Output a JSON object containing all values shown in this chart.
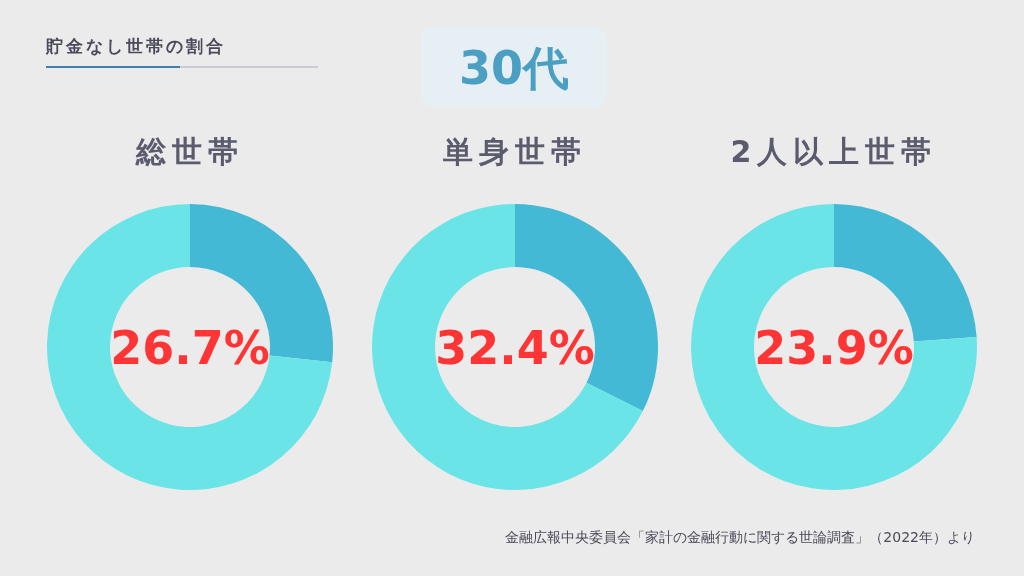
{
  "chart_data": [
    {
      "type": "donut",
      "title": "総世帯",
      "categories": [
        null,
        null
      ],
      "values": [
        26.7,
        73.3
      ],
      "colors": [
        "#43b9d6",
        "#6be4e7"
      ],
      "annotations": [
        "26.7%",
        "貯金なし世帯の割合",
        "30代"
      ]
    },
    {
      "type": "donut",
      "title": "単身世帯",
      "categories": [
        null,
        null
      ],
      "values": [
        32.4,
        67.6
      ],
      "colors": [
        "#43b9d6",
        "#6be4e7"
      ],
      "annotations": [
        "32.4%"
      ]
    },
    {
      "type": "donut",
      "title": "2人以上世帯",
      "categories": [
        null,
        null
      ],
      "values": [
        23.9,
        76.1
      ],
      "colors": [
        "#43b9d6",
        "#6be4e7"
      ],
      "annotations": [
        "23.9%",
        "金融広報中央委員会「家計の金融行動に関する世論調査」（2022年）より"
      ]
    }
  ]
}
